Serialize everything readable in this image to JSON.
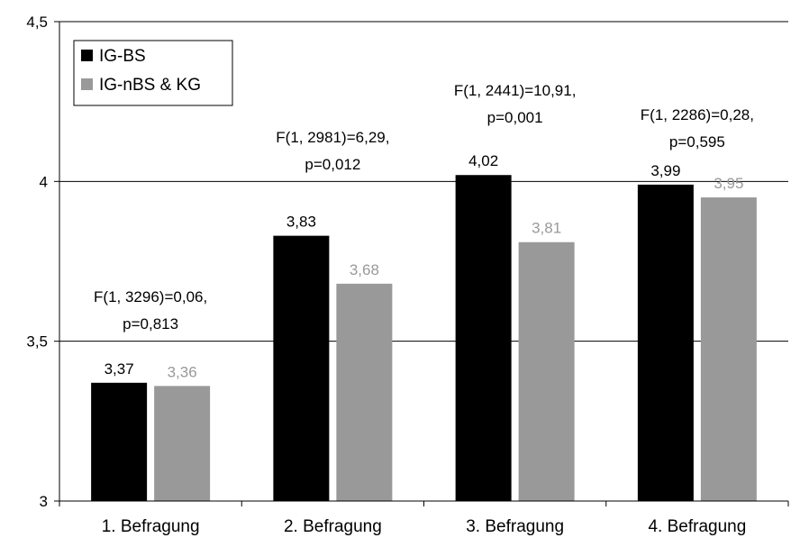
{
  "chart_data": {
    "type": "bar",
    "title": "",
    "xlabel": "",
    "ylabel": "",
    "ylim": [
      3,
      4.5
    ],
    "yticks": [
      3,
      3.5,
      4,
      4.5
    ],
    "ytick_labels": [
      "3",
      "3,5",
      "4",
      "4,5"
    ],
    "grid": true,
    "legend_position": "top-left",
    "categories": [
      "1. Befragung",
      "2. Befragung",
      "3. Befragung",
      "4. Befragung"
    ],
    "series": [
      {
        "name": "IG-BS",
        "color": "#000000",
        "label_color": "#000000",
        "values": [
          3.37,
          3.83,
          4.02,
          3.99
        ],
        "labels": [
          "3,37",
          "3,83",
          "4,02",
          "3,99"
        ]
      },
      {
        "name": "IG-nBS & KG",
        "color": "#999999",
        "label_color": "#999999",
        "values": [
          3.36,
          3.68,
          3.81,
          3.95
        ],
        "labels": [
          "3,36",
          "3,68",
          "3,81",
          "3,95"
        ]
      }
    ],
    "annotations": [
      [
        "F(1, 3296)=0,06,",
        "p=0,813"
      ],
      [
        "F(1, 2981)=6,29,",
        "p=0,012"
      ],
      [
        "F(1, 2441)=10,91,",
        "p=0,001"
      ],
      [
        "F(1, 2286)=0,28,",
        "p=0,595"
      ]
    ]
  }
}
